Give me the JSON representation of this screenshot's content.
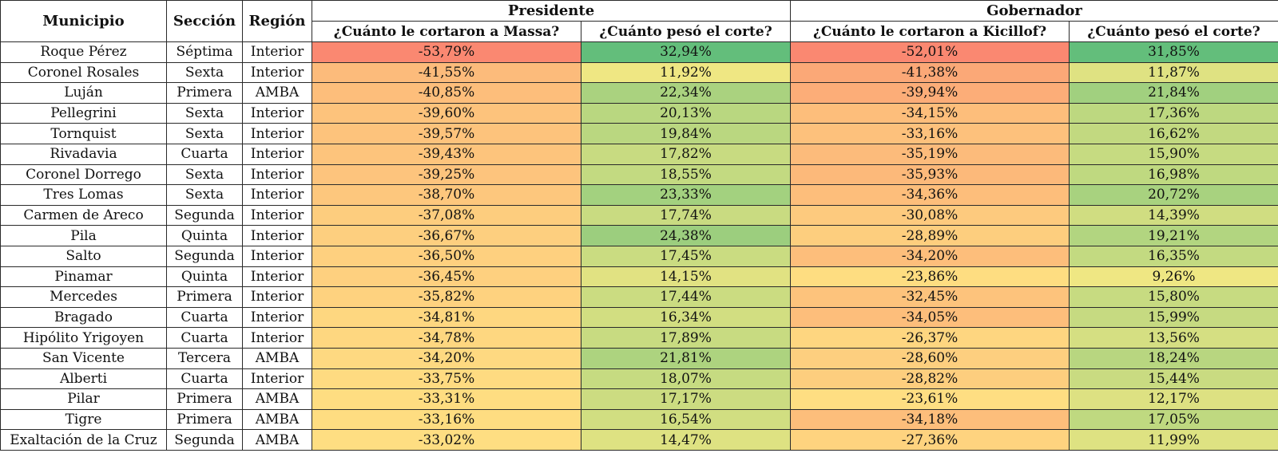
{
  "table": {
    "headers": {
      "municipio": "Municipio",
      "seccion": "Sección",
      "region": "Región",
      "presidente": "Presidente",
      "gobernador": "Gobernador",
      "corte_massa": "¿Cuánto le cortaron a Massa?",
      "peso_presidente": "¿Cuánto pesó el corte?",
      "corte_kicillof": "¿Cuánto le cortaron a Kicillof?",
      "peso_gobernador": "¿Cuánto pesó el corte?"
    },
    "scale_colors": {
      "red": "#f8696b",
      "yellow": "#ffeb84",
      "green": "#63be7b"
    }
  },
  "chart_data": {
    "type": "table",
    "columns": [
      "Municipio",
      "Sección",
      "Región",
      "¿Cuánto le cortaron a Massa?",
      "¿Cuánto pesó el corte?",
      "¿Cuánto le cortaron a Kicillof?",
      "¿Cuánto pesó el corte?"
    ],
    "rows": [
      {
        "municipio": "Roque Pérez",
        "seccion": "Séptima",
        "region": "Interior",
        "massa": "-53,79%",
        "peso_p": "32,94%",
        "kicillof": "-52,01%",
        "peso_g": "31,85%"
      },
      {
        "municipio": "Coronel Rosales",
        "seccion": "Sexta",
        "region": "Interior",
        "massa": "-41,55%",
        "peso_p": "11,92%",
        "kicillof": "-41,38%",
        "peso_g": "11,87%"
      },
      {
        "municipio": "Luján",
        "seccion": "Primera",
        "region": "AMBA",
        "massa": "-40,85%",
        "peso_p": "22,34%",
        "kicillof": "-39,94%",
        "peso_g": "21,84%"
      },
      {
        "municipio": "Pellegrini",
        "seccion": "Sexta",
        "region": "Interior",
        "massa": "-39,60%",
        "peso_p": "20,13%",
        "kicillof": "-34,15%",
        "peso_g": "17,36%"
      },
      {
        "municipio": "Tornquist",
        "seccion": "Sexta",
        "region": "Interior",
        "massa": "-39,57%",
        "peso_p": "19,84%",
        "kicillof": "-33,16%",
        "peso_g": "16,62%"
      },
      {
        "municipio": "Rivadavia",
        "seccion": "Cuarta",
        "region": "Interior",
        "massa": "-39,43%",
        "peso_p": "17,82%",
        "kicillof": "-35,19%",
        "peso_g": "15,90%"
      },
      {
        "municipio": "Coronel Dorrego",
        "seccion": "Sexta",
        "region": "Interior",
        "massa": "-39,25%",
        "peso_p": "18,55%",
        "kicillof": "-35,93%",
        "peso_g": "16,98%"
      },
      {
        "municipio": "Tres Lomas",
        "seccion": "Sexta",
        "region": "Interior",
        "massa": "-38,70%",
        "peso_p": "23,33%",
        "kicillof": "-34,36%",
        "peso_g": "20,72%"
      },
      {
        "municipio": "Carmen de Areco",
        "seccion": "Segunda",
        "region": "Interior",
        "massa": "-37,08%",
        "peso_p": "17,74%",
        "kicillof": "-30,08%",
        "peso_g": "14,39%"
      },
      {
        "municipio": "Pila",
        "seccion": "Quinta",
        "region": "Interior",
        "massa": "-36,67%",
        "peso_p": "24,38%",
        "kicillof": "-28,89%",
        "peso_g": "19,21%"
      },
      {
        "municipio": "Salto",
        "seccion": "Segunda",
        "region": "Interior",
        "massa": "-36,50%",
        "peso_p": "17,45%",
        "kicillof": "-34,20%",
        "peso_g": "16,35%"
      },
      {
        "municipio": "Pinamar",
        "seccion": "Quinta",
        "region": "Interior",
        "massa": "-36,45%",
        "peso_p": "14,15%",
        "kicillof": "-23,86%",
        "peso_g": "9,26%"
      },
      {
        "municipio": "Mercedes",
        "seccion": "Primera",
        "region": "Interior",
        "massa": "-35,82%",
        "peso_p": "17,44%",
        "kicillof": "-32,45%",
        "peso_g": "15,80%"
      },
      {
        "municipio": "Bragado",
        "seccion": "Cuarta",
        "region": "Interior",
        "massa": "-34,81%",
        "peso_p": "16,34%",
        "kicillof": "-34,05%",
        "peso_g": "15,99%"
      },
      {
        "municipio": "Hipólito Yrigoyen",
        "seccion": "Cuarta",
        "region": "Interior",
        "massa": "-34,78%",
        "peso_p": "17,89%",
        "kicillof": "-26,37%",
        "peso_g": "13,56%"
      },
      {
        "municipio": "San Vicente",
        "seccion": "Tercera",
        "region": "AMBA",
        "massa": "-34,20%",
        "peso_p": "21,81%",
        "kicillof": "-28,60%",
        "peso_g": "18,24%"
      },
      {
        "municipio": "Alberti",
        "seccion": "Cuarta",
        "region": "Interior",
        "massa": "-33,75%",
        "peso_p": "18,07%",
        "kicillof": "-28,82%",
        "peso_g": "15,44%"
      },
      {
        "municipio": "Pilar",
        "seccion": "Primera",
        "region": "AMBA",
        "massa": "-33,31%",
        "peso_p": "17,17%",
        "kicillof": "-23,61%",
        "peso_g": "12,17%"
      },
      {
        "municipio": "Tigre",
        "seccion": "Primera",
        "region": "AMBA",
        "massa": "-33,16%",
        "peso_p": "16,54%",
        "kicillof": "-34,18%",
        "peso_g": "17,05%"
      },
      {
        "municipio": "Exaltación de la Cruz",
        "seccion": "Segunda",
        "region": "AMBA",
        "massa": "-33,02%",
        "peso_p": "14,47%",
        "kicillof": "-27,36%",
        "peso_g": "11,99%"
      }
    ]
  }
}
